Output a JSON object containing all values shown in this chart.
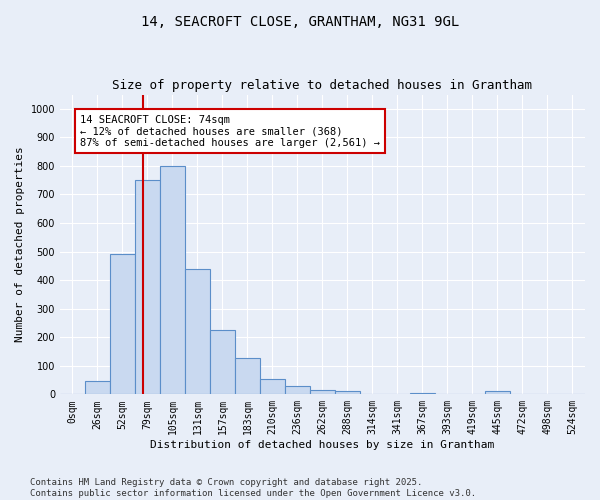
{
  "title": "14, SEACROFT CLOSE, GRANTHAM, NG31 9GL",
  "subtitle": "Size of property relative to detached houses in Grantham",
  "xlabel": "Distribution of detached houses by size in Grantham",
  "ylabel": "Number of detached properties",
  "bar_labels": [
    "0sqm",
    "26sqm",
    "52sqm",
    "79sqm",
    "105sqm",
    "131sqm",
    "157sqm",
    "183sqm",
    "210sqm",
    "236sqm",
    "262sqm",
    "288sqm",
    "314sqm",
    "341sqm",
    "367sqm",
    "393sqm",
    "419sqm",
    "445sqm",
    "472sqm",
    "498sqm",
    "524sqm"
  ],
  "bar_values": [
    0,
    45,
    490,
    750,
    800,
    440,
    225,
    128,
    52,
    30,
    15,
    10,
    0,
    0,
    5,
    0,
    0,
    10,
    0,
    0,
    0
  ],
  "bar_color": "#c9d9f0",
  "bar_edge_color": "#5b8ec9",
  "vline_color": "#cc0000",
  "annotation_text": "14 SEACROFT CLOSE: 74sqm\n← 12% of detached houses are smaller (368)\n87% of semi-detached houses are larger (2,561) →",
  "annotation_box_color": "#ffffff",
  "annotation_box_edge": "#cc0000",
  "ylim": [
    0,
    1050
  ],
  "yticks": [
    0,
    100,
    200,
    300,
    400,
    500,
    600,
    700,
    800,
    900,
    1000
  ],
  "background_color": "#e8eef8",
  "fig_background_color": "#e8eef8",
  "grid_color": "#ffffff",
  "footer": "Contains HM Land Registry data © Crown copyright and database right 2025.\nContains public sector information licensed under the Open Government Licence v3.0.",
  "title_fontsize": 10,
  "subtitle_fontsize": 9,
  "xlabel_fontsize": 8,
  "ylabel_fontsize": 8,
  "tick_fontsize": 7,
  "footer_fontsize": 6.5,
  "annotation_fontsize": 7.5
}
